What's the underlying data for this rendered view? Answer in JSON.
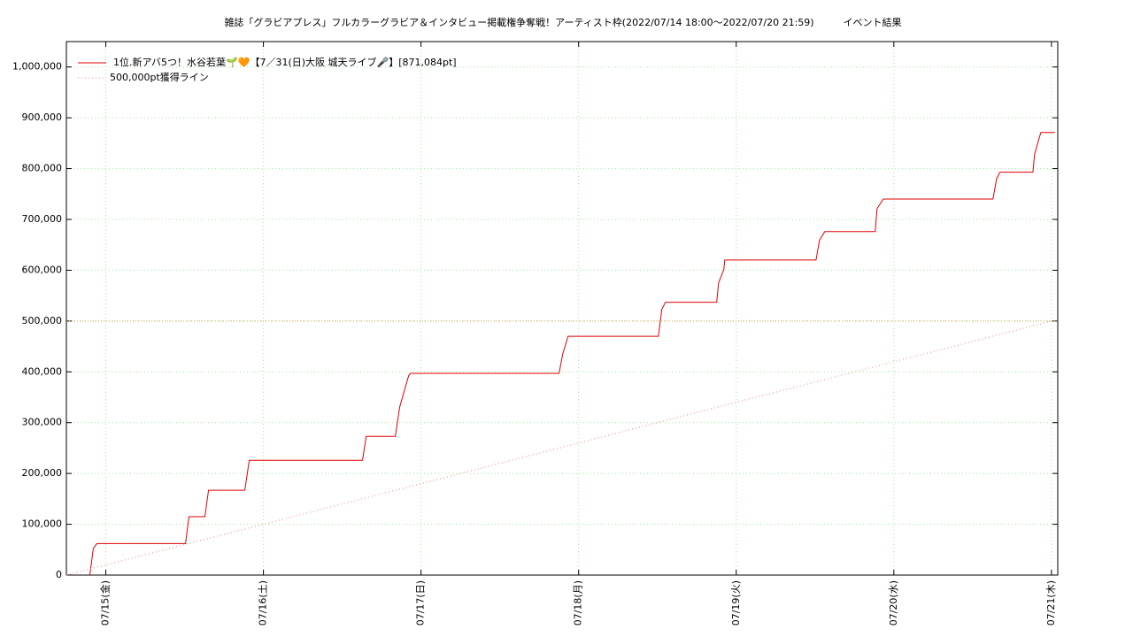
{
  "chart_data": {
    "type": "line",
    "title": "雑誌「グラビアプレス」フルカラーグラビア＆インタビュー掲載権争奪戦！アーティスト枠(2022/07/14 18:00～2022/07/20 21:59)　　　イベント結果",
    "xlim": [
      14.75,
      21.04
    ],
    "ylim": [
      0,
      1050000
    ],
    "xticks": [
      {
        "value": 15,
        "label": "07/15(金)"
      },
      {
        "value": 16,
        "label": "07/16(土)"
      },
      {
        "value": 17,
        "label": "07/17(日)"
      },
      {
        "value": 18,
        "label": "07/18(月)"
      },
      {
        "value": 19,
        "label": "07/19(火)"
      },
      {
        "value": 20,
        "label": "07/20(水)"
      },
      {
        "value": 21,
        "label": "07/21(木)"
      }
    ],
    "yticks": [
      0,
      {
        "value": 100000,
        "label": "100,000"
      },
      {
        "value": 200000,
        "label": "200,000"
      },
      {
        "value": 300000,
        "label": "300,000"
      },
      {
        "value": 400000,
        "label": "400,000"
      },
      {
        "value": 500000,
        "label": "500,000"
      },
      {
        "value": 600000,
        "label": "600,000"
      },
      {
        "value": 700000,
        "label": "700,000"
      },
      {
        "value": 800000,
        "label": "800,000"
      },
      {
        "value": 900000,
        "label": "900,000"
      },
      {
        "value": 1000000,
        "label": "1,000,000"
      }
    ],
    "grid": true,
    "grid_color": "#9de89d",
    "legend": "upper-left",
    "reference_line": {
      "value": 500000,
      "color": "#e8a060"
    },
    "series": [
      {
        "name": "1位.新アバ5つ！水谷若葉🌱🧡【7／31(日)大阪 城天ライブ🎤】[871,084pt]",
        "color": "#e00000",
        "style": "solid",
        "x": [
          14.899,
          14.921,
          14.944,
          15.506,
          15.528,
          15.629,
          15.652,
          15.882,
          15.91,
          16.629,
          16.652,
          16.837,
          16.865,
          16.921,
          16.933,
          17.876,
          17.899,
          17.933,
          18.506,
          18.528,
          18.551,
          18.876,
          18.888,
          18.921,
          18.927,
          19.506,
          19.528,
          19.562,
          19.882,
          19.893,
          19.933,
          20.629,
          20.652,
          20.674,
          20.882,
          20.893,
          20.921,
          20.933,
          21.022
        ],
        "values": [
          0,
          52000,
          62000,
          62000,
          115000,
          115000,
          167000,
          167000,
          226000,
          226000,
          273000,
          273000,
          331000,
          392000,
          397000,
          397000,
          435000,
          470000,
          470000,
          523000,
          537000,
          537000,
          575000,
          601000,
          620000,
          620000,
          659000,
          676000,
          676000,
          721000,
          740000,
          740000,
          780000,
          793000,
          793000,
          828000,
          859000,
          871084,
          871084
        ]
      },
      {
        "name": "500,000pt獲得ライン",
        "color": "#f08080",
        "style": "dotted",
        "x": [
          14.75,
          21
        ],
        "values": [
          0,
          500000
        ]
      }
    ]
  }
}
